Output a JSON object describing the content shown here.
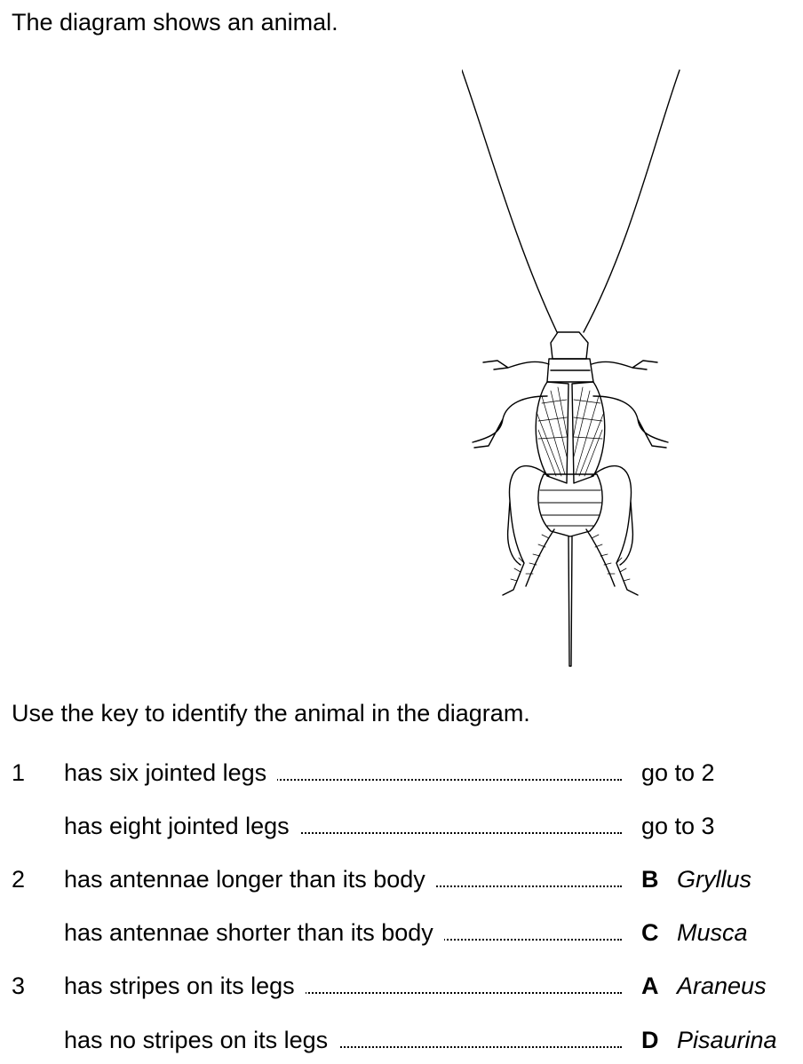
{
  "intro": "The diagram shows an animal.",
  "instruction": "Use the key to identify the animal in the diagram.",
  "key": [
    {
      "number": "1",
      "description": "has six jointed legs",
      "result": "go to 2",
      "letter": "",
      "genus": ""
    },
    {
      "number": "",
      "description": "has eight jointed legs",
      "result": "go to 3",
      "letter": "",
      "genus": ""
    },
    {
      "number": "2",
      "description": "has antennae longer than its body",
      "result": "",
      "letter": "B",
      "genus": "Gryllus"
    },
    {
      "number": "",
      "description": "has antennae shorter than its body",
      "result": "",
      "letter": "C",
      "genus": "Musca"
    },
    {
      "number": "3",
      "description": "has stripes on its legs",
      "result": "",
      "letter": "A",
      "genus": "Araneus"
    },
    {
      "number": "",
      "description": "has no stripes on its legs",
      "result": "",
      "letter": "D",
      "genus": "Pisaurina"
    }
  ]
}
